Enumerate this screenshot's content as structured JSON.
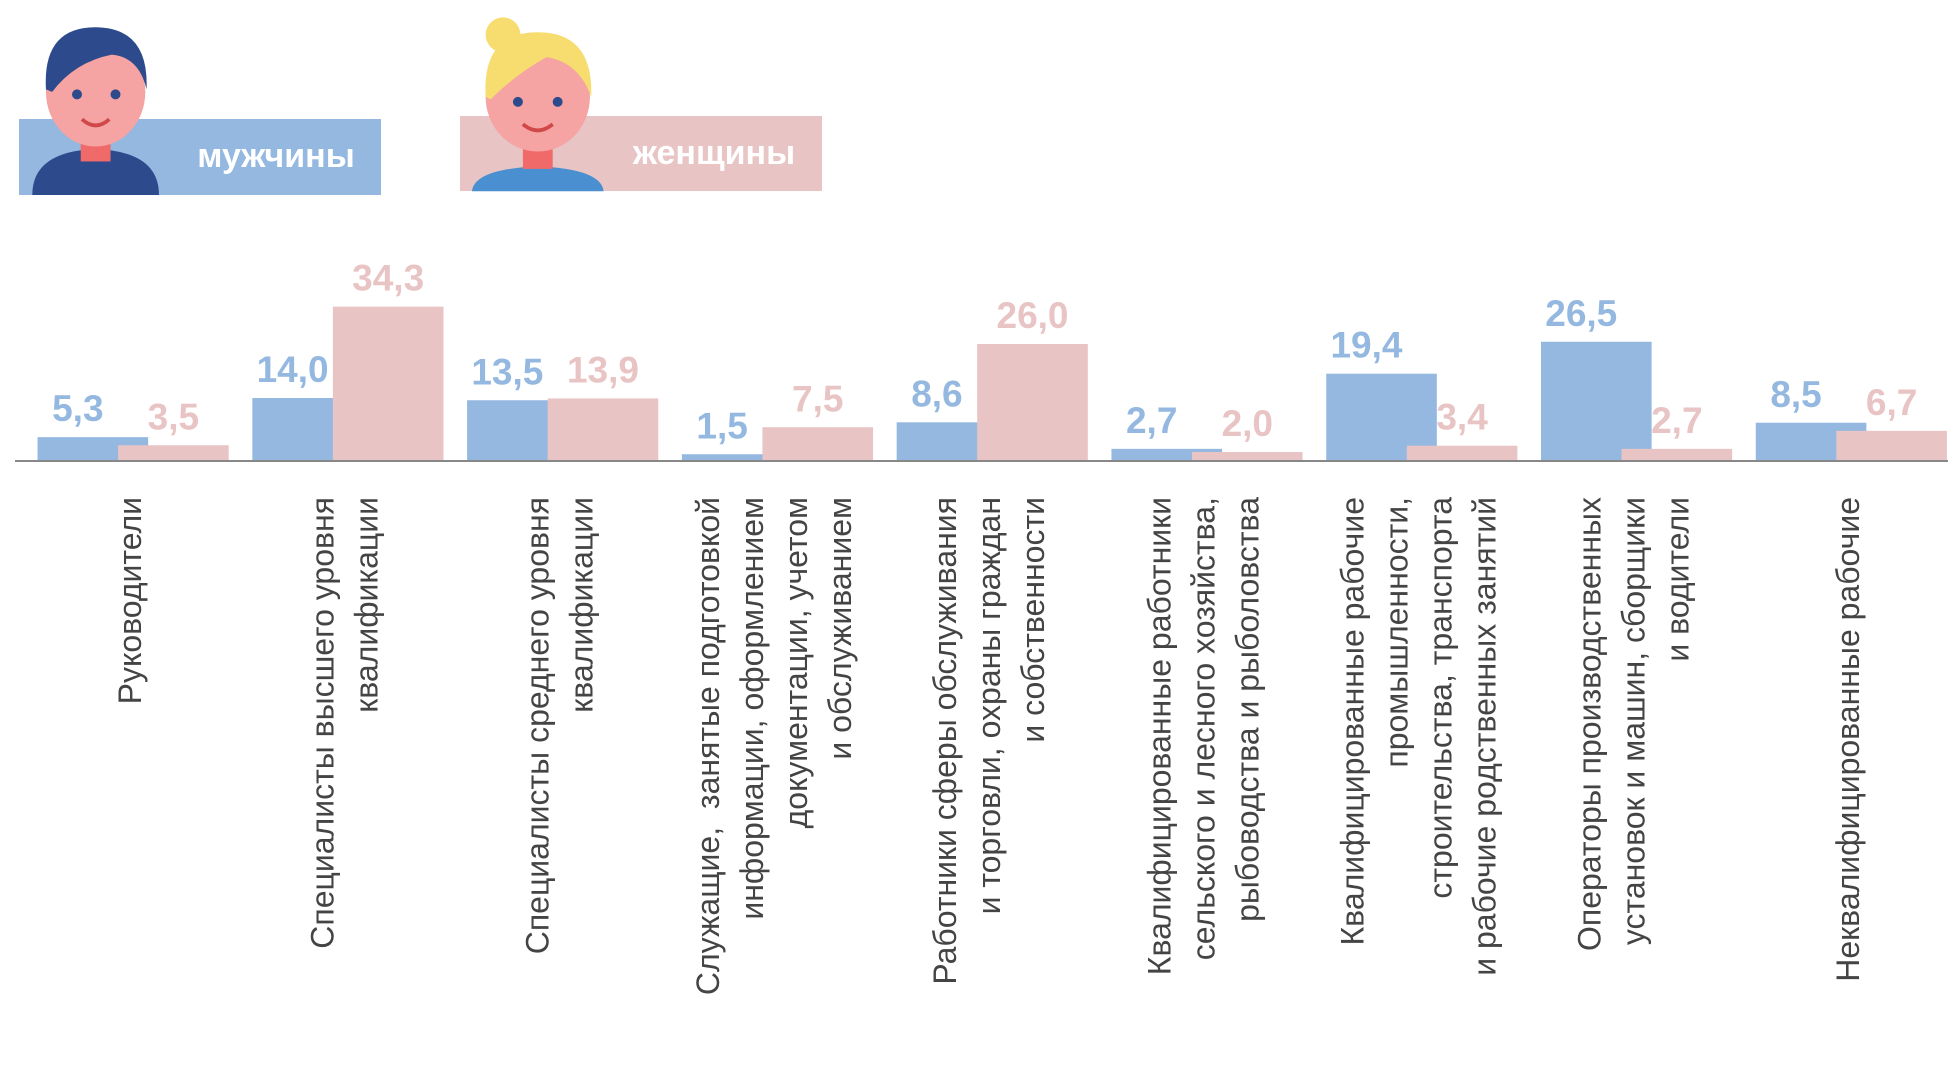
{
  "chart_data": {
    "type": "bar",
    "categories": [
      [
        "Руководители"
      ],
      [
        "Специалисты высшего уровня",
        "квалификации"
      ],
      [
        "Специалисты среднего уровня",
        "квалификации"
      ],
      [
        "Служащие,  занятые подготовкой",
        "информации, оформлением",
        "документации, учетом",
        "и обслуживанием"
      ],
      [
        "Работники сферы обслуживания",
        "и торговли, охраны граждан",
        "и собственности"
      ],
      [
        "Квалифицированные работники",
        "сельского и лесного хозяйства,",
        "рыбоводства и рыболовства"
      ],
      [
        "Квалифицированные рабочие",
        "промышленности,",
        "строительства, транспорта",
        "и рабочие родственных занятий"
      ],
      [
        "Операторы производственных",
        "установок и машин, сборщики",
        "и водители"
      ],
      [
        "Неквалифицированные рабочие"
      ]
    ],
    "series": [
      {
        "name": "мужчины",
        "color": "#94b8e0",
        "values": [
          5.3,
          14.0,
          13.5,
          1.5,
          8.6,
          2.7,
          19.4,
          26.5,
          8.5
        ],
        "value_labels": [
          "5,3",
          "14,0",
          "13,5",
          "1,5",
          "8,6",
          "2,7",
          "19,4",
          "26,5",
          "8,5"
        ]
      },
      {
        "name": "женщины",
        "color": "#e8c4c4",
        "values": [
          3.5,
          34.3,
          13.9,
          7.5,
          26.0,
          2.0,
          3.4,
          2.7,
          6.7
        ],
        "value_labels": [
          "3,5",
          "34,3",
          "13,9",
          "7,5",
          "26,0",
          "2,0",
          "3,4",
          "2,7",
          "6,7"
        ]
      }
    ],
    "ylim": [
      0,
      40
    ]
  }
}
